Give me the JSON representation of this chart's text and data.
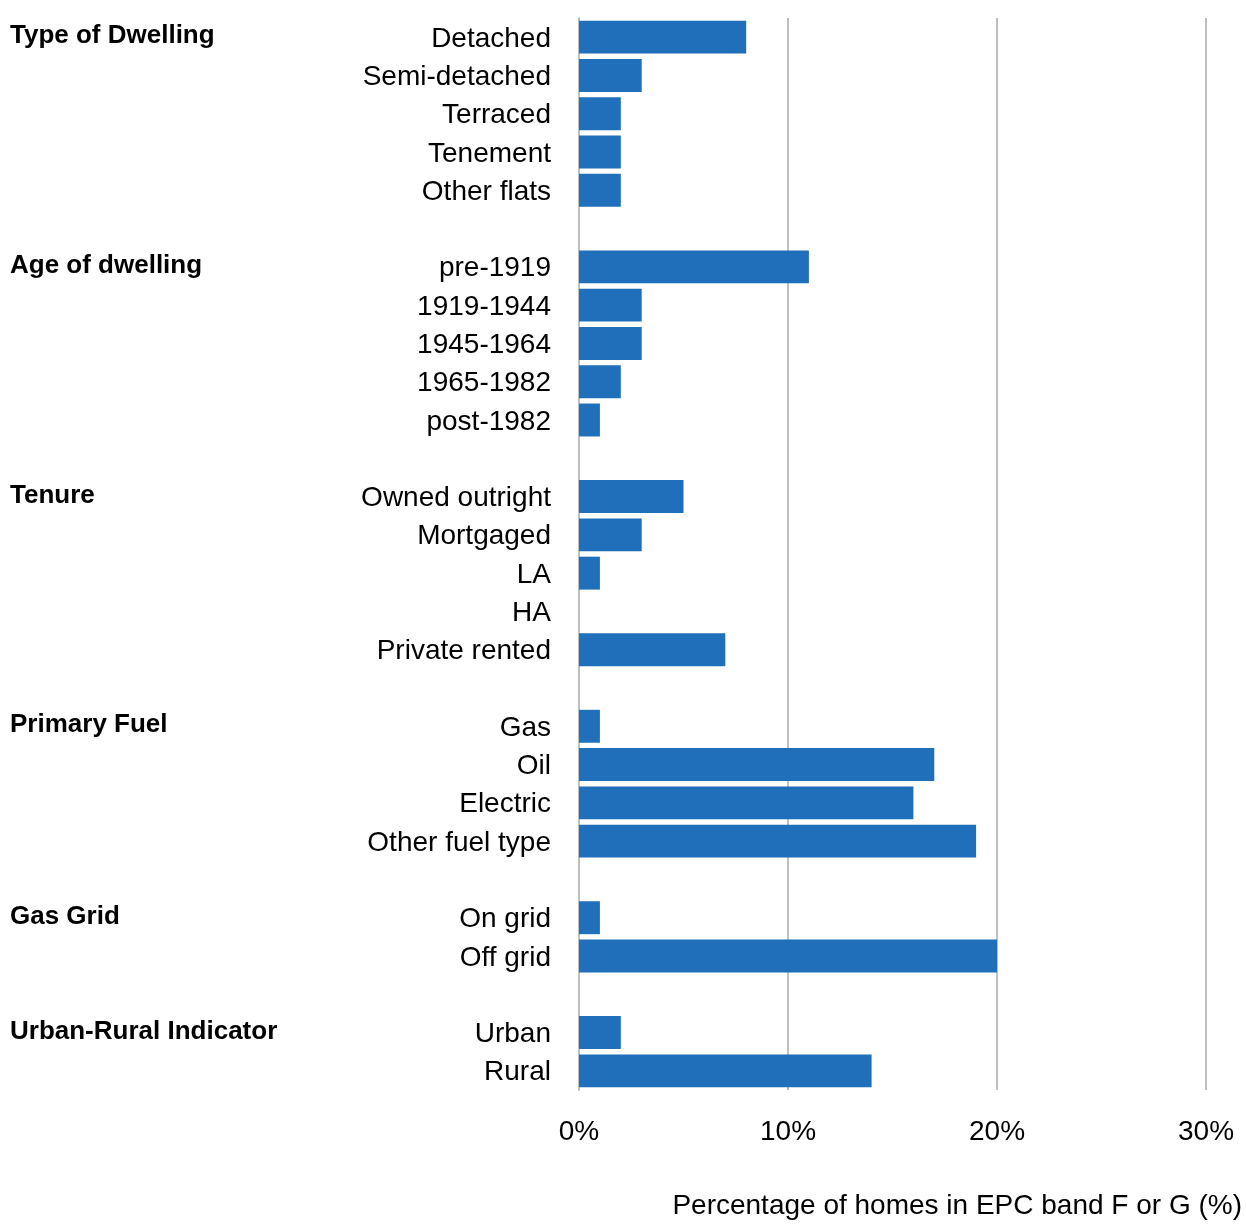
{
  "chart_data": {
    "type": "bar",
    "orientation": "horizontal",
    "xlabel": "Percentage of homes in EPC band F or G (%)",
    "annotations": [
      "Type of Dwelling",
      "Age of dwelling",
      "Tenure",
      "Primary Fuel",
      "Gas Grid",
      "Urban-Rural Indicator"
    ],
    "categories": [
      "Detached",
      "Semi-detached",
      "Terraced",
      "Tenement",
      "Other flats",
      null,
      "pre-1919",
      "1919-1944",
      "1945-1964",
      "1965-1982",
      "post-1982",
      null,
      "Owned outright",
      "Mortgaged",
      "LA",
      "HA",
      "Private rented",
      null,
      "Gas",
      "Oil",
      "Electric",
      "Other fuel type",
      null,
      "On grid",
      "Off grid",
      null,
      "Urban",
      "Rural"
    ],
    "values": [
      8,
      3,
      2,
      2,
      2,
      null,
      11,
      3,
      3,
      2,
      1,
      null,
      5,
      3,
      1,
      null,
      7,
      null,
      1,
      17,
      16,
      19,
      null,
      1,
      20,
      null,
      2,
      14
    ],
    "color": "#1f6fba",
    "xlim": [
      0,
      30
    ],
    "xticks": [
      {
        "value": 0,
        "label": "0%"
      },
      {
        "value": 10,
        "label": "10%"
      },
      {
        "value": 20,
        "label": "20%"
      },
      {
        "value": 30,
        "label": "30%"
      }
    ],
    "grid": "x"
  }
}
